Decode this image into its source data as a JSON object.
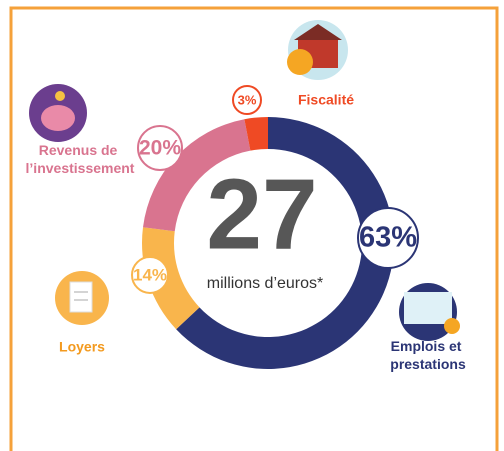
{
  "chart_data": {
    "type": "donut",
    "center_value": "27",
    "center_label": "millions d’euros*",
    "categories": [
      "Emplois et prestations",
      "Loyers",
      "Revenus de l’investissement",
      "Fiscalité"
    ],
    "values": [
      63,
      14,
      20,
      3
    ],
    "value_labels": [
      "63%",
      "14%",
      "20%",
      "3%"
    ],
    "colors": [
      "#2b3575",
      "#f9b54c",
      "#d9748f",
      "#ef4a24"
    ]
  }
}
